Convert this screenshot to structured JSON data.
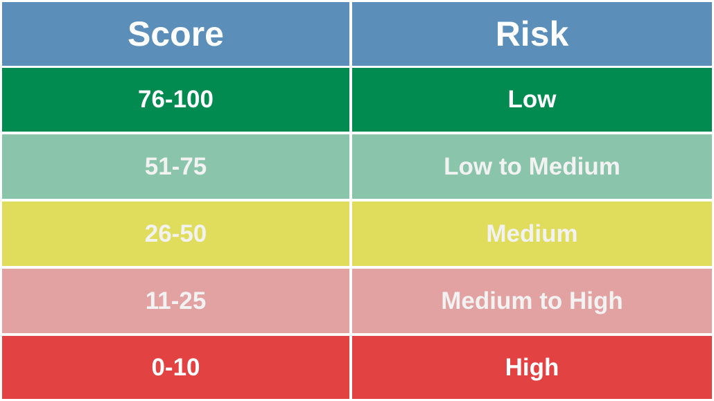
{
  "header": {
    "col1": "Score",
    "col2": "Risk",
    "color": "#5b8fb9"
  },
  "rows": [
    {
      "score": "76-100",
      "risk": "Low",
      "color": "#018b51"
    },
    {
      "score": "51-75",
      "risk": "Low to Medium",
      "color": "#89c4ab"
    },
    {
      "score": "26-50",
      "risk": "Medium",
      "color": "#dfdd5b"
    },
    {
      "score": "11-25",
      "risk": "Medium to High",
      "color": "#e2a2a1"
    },
    {
      "score": "0-10",
      "risk": "High",
      "color": "#e34243"
    }
  ]
}
